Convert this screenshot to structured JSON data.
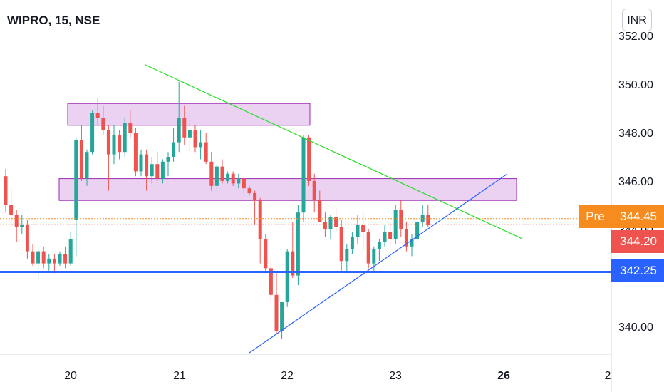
{
  "header": {
    "title": "WIPRO, 15, NSE",
    "currency": "INR"
  },
  "price_tags": {
    "pre_label": "Pre",
    "pre_price": "344.45",
    "last_price": "344.20",
    "support_price": "342.25"
  },
  "colors": {
    "up": "#26a69a",
    "down": "#ef5350",
    "zone_fill": "#e8c9f0",
    "zone_stroke": "#9c27b0",
    "support": "#2962ff",
    "trend_down": "#22dd22",
    "trend_up": "#2962ff",
    "pre": "#f68b1f",
    "last": "#ef5350"
  },
  "chart_data": {
    "type": "candlestick",
    "title": "WIPRO, 15, NSE",
    "y_ticks": [
      "340.00",
      "342.00",
      "344.00",
      "346.00",
      "348.00",
      "350.00",
      "352.00"
    ],
    "x_ticks": [
      "20",
      "21",
      "22",
      "23",
      "26",
      "2"
    ],
    "ylim": [
      338.9,
      352.5
    ],
    "grid": false,
    "candles_ohlc": [
      [
        346.2,
        346.5,
        344.7,
        345.0
      ],
      [
        345.0,
        345.7,
        344.1,
        344.6
      ],
      [
        344.6,
        344.8,
        343.5,
        344.1
      ],
      [
        344.1,
        344.6,
        343.8,
        344.2
      ],
      [
        344.2,
        344.4,
        342.8,
        343.1
      ],
      [
        343.1,
        343.4,
        342.5,
        342.6
      ],
      [
        342.6,
        343.3,
        341.9,
        343.1
      ],
      [
        343.1,
        343.3,
        342.4,
        342.6
      ],
      [
        342.6,
        343.0,
        342.3,
        342.8
      ],
      [
        342.8,
        343.0,
        342.2,
        342.6
      ],
      [
        342.6,
        343.1,
        342.5,
        343.0
      ],
      [
        343.0,
        343.3,
        342.4,
        342.6
      ],
      [
        342.6,
        343.9,
        342.5,
        343.6
      ],
      [
        344.4,
        347.8,
        342.9,
        347.7
      ],
      [
        347.7,
        348.3,
        346.0,
        346.1
      ],
      [
        346.1,
        347.3,
        345.8,
        347.2
      ],
      [
        347.2,
        348.9,
        347.1,
        348.8
      ],
      [
        348.8,
        349.4,
        348.3,
        348.6
      ],
      [
        348.6,
        349.1,
        347.9,
        348.1
      ],
      [
        348.1,
        348.3,
        345.6,
        347.1
      ],
      [
        347.1,
        348.3,
        346.7,
        347.9
      ],
      [
        347.9,
        348.1,
        346.9,
        347.2
      ],
      [
        347.2,
        348.6,
        347.0,
        348.4
      ],
      [
        348.4,
        348.9,
        347.8,
        348.0
      ],
      [
        348.0,
        348.2,
        346.2,
        346.4
      ],
      [
        346.4,
        347.3,
        346.2,
        347.1
      ],
      [
        347.1,
        347.3,
        345.6,
        346.2
      ],
      [
        346.2,
        347.0,
        345.9,
        346.7
      ],
      [
        346.7,
        347.2,
        346.0,
        346.1
      ],
      [
        346.1,
        346.9,
        345.9,
        346.8
      ],
      [
        346.8,
        347.2,
        346.2,
        347.0
      ],
      [
        347.0,
        348.2,
        346.8,
        347.6
      ],
      [
        347.6,
        350.1,
        347.2,
        348.6
      ],
      [
        348.6,
        349.1,
        347.5,
        347.8
      ],
      [
        347.8,
        348.5,
        347.2,
        348.1
      ],
      [
        348.1,
        348.3,
        347.2,
        347.4
      ],
      [
        347.4,
        348.1,
        346.9,
        347.6
      ],
      [
        347.6,
        348.0,
        346.7,
        346.8
      ],
      [
        346.8,
        347.2,
        345.6,
        345.8
      ],
      [
        345.8,
        346.7,
        345.6,
        346.6
      ],
      [
        346.6,
        346.9,
        345.9,
        346.0
      ],
      [
        346.0,
        346.4,
        345.9,
        346.3
      ],
      [
        346.3,
        346.4,
        345.8,
        345.9
      ],
      [
        345.9,
        346.3,
        345.7,
        346.1
      ],
      [
        346.1,
        346.2,
        345.5,
        345.7
      ],
      [
        345.7,
        345.8,
        345.4,
        345.5
      ],
      [
        345.5,
        345.6,
        344.2,
        345.2
      ],
      [
        345.2,
        345.3,
        342.6,
        343.6
      ],
      [
        343.6,
        343.8,
        342.2,
        342.4
      ],
      [
        342.4,
        342.8,
        341.0,
        341.3
      ],
      [
        341.3,
        342.2,
        339.7,
        339.8
      ],
      [
        339.8,
        341.0,
        339.5,
        341.0
      ],
      [
        341.0,
        343.2,
        340.8,
        343.1
      ],
      [
        343.1,
        344.3,
        342.0,
        342.1
      ],
      [
        342.1,
        345.0,
        341.7,
        344.7
      ],
      [
        344.7,
        347.9,
        344.3,
        347.8
      ],
      [
        347.8,
        347.9,
        345.8,
        346.0
      ],
      [
        346.0,
        346.3,
        344.7,
        345.2
      ],
      [
        345.2,
        345.6,
        344.3,
        344.3
      ],
      [
        344.3,
        344.7,
        343.7,
        344.0
      ],
      [
        344.0,
        344.6,
        343.6,
        344.5
      ],
      [
        344.5,
        344.9,
        343.9,
        344.1
      ],
      [
        344.1,
        344.4,
        342.3,
        342.7
      ],
      [
        342.7,
        343.4,
        342.2,
        343.2
      ],
      [
        343.2,
        343.9,
        343.0,
        343.7
      ],
      [
        343.7,
        344.6,
        343.4,
        344.2
      ],
      [
        344.2,
        344.7,
        343.1,
        343.9
      ],
      [
        343.9,
        344.0,
        342.4,
        342.6
      ],
      [
        342.6,
        343.3,
        342.3,
        343.2
      ],
      [
        343.2,
        343.6,
        342.7,
        343.5
      ],
      [
        343.5,
        344.2,
        343.3,
        343.9
      ],
      [
        343.9,
        344.3,
        343.4,
        343.6
      ],
      [
        343.6,
        345.0,
        343.4,
        344.8
      ],
      [
        344.8,
        345.2,
        343.7,
        344.0
      ],
      [
        344.0,
        344.3,
        343.1,
        343.3
      ],
      [
        343.3,
        343.8,
        342.9,
        343.6
      ],
      [
        343.6,
        344.5,
        343.5,
        344.3
      ],
      [
        344.3,
        345.0,
        344.1,
        344.6
      ],
      [
        344.6,
        345.0,
        344.1,
        344.2
      ]
    ],
    "drawings": {
      "resistance_zone": [
        348.3,
        349.2
      ],
      "support_zone": [
        345.2,
        346.1
      ],
      "horizontal_line": 342.25,
      "pre_market_line": 344.45,
      "last_line": 344.2
    }
  }
}
